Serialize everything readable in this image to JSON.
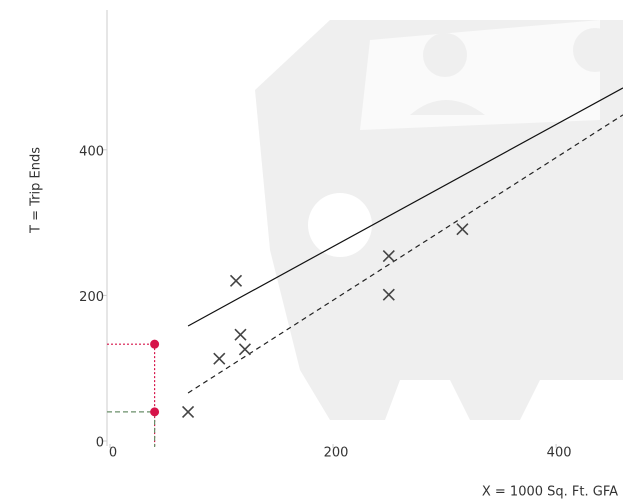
{
  "chart_data": {
    "type": "scatter",
    "x_label": "X = 1000 Sq. Ft. GFA",
    "y_label": "T = Trip Ends",
    "xlim": [
      0,
      460
    ],
    "ylim": [
      0,
      592
    ],
    "xticks": [
      0,
      200,
      400
    ],
    "yticks": [
      0,
      200,
      400
    ],
    "x": [
      70,
      98,
      117,
      121,
      113,
      250,
      250,
      316
    ],
    "values": [
      40,
      113,
      146,
      126,
      220,
      254,
      201,
      291
    ],
    "color": "#444444",
    "lines": [
      {
        "x": [
          70,
          460
        ],
        "values": [
          158,
          485
        ],
        "dash": "solid",
        "color": "#111111"
      },
      {
        "x": [
          70,
          460
        ],
        "values": [
          66,
          448
        ],
        "dash": "dashed",
        "color": "#222222"
      }
    ],
    "markers": {
      "x": [
        40,
        40
      ],
      "values": [
        133,
        40
      ],
      "color": "#d6144a"
    }
  }
}
